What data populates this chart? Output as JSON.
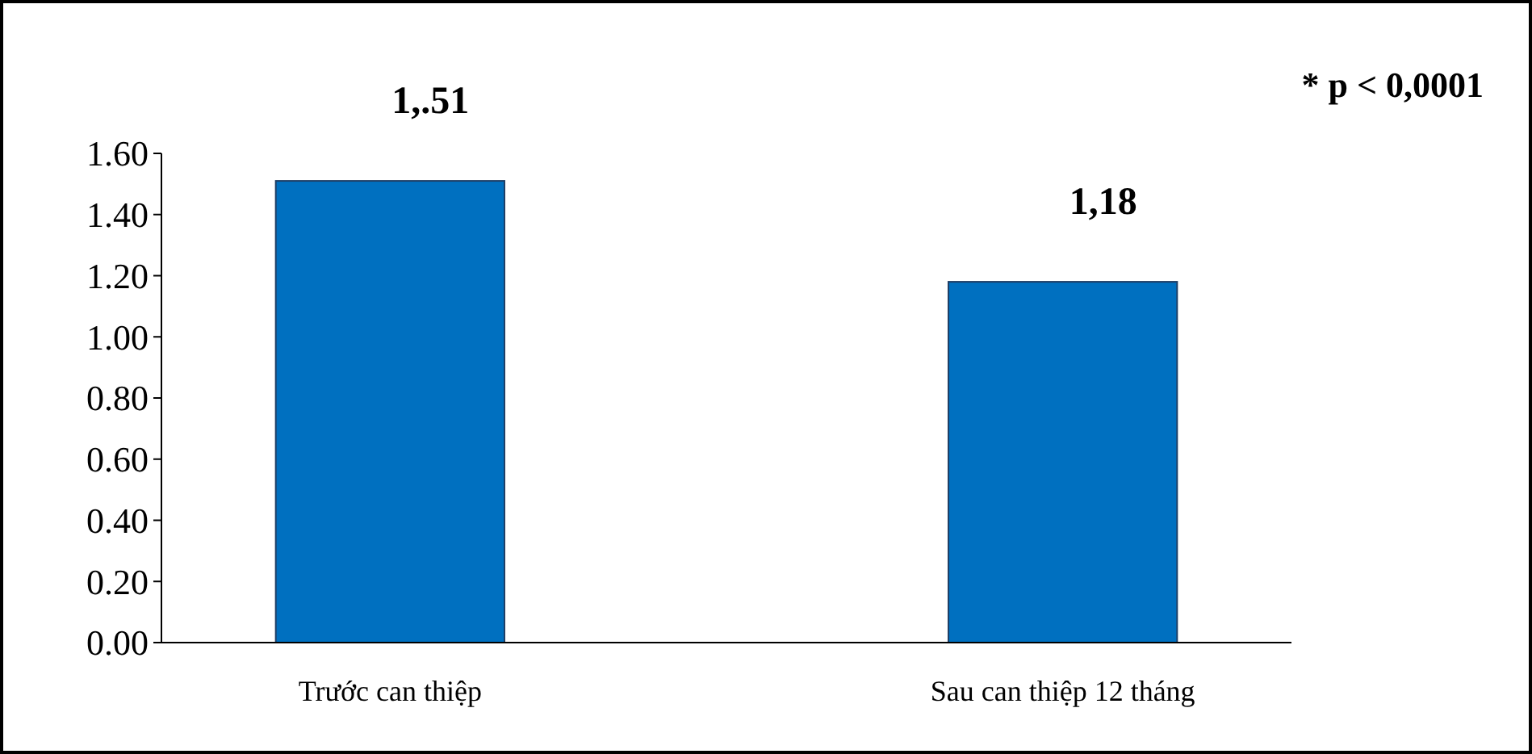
{
  "chart_data": {
    "type": "bar",
    "categories": [
      "Trước can thiệp",
      "Sau can thiệp 12 tháng"
    ],
    "values": [
      1.51,
      1.18
    ],
    "value_labels": [
      "1,.51",
      "1,18"
    ],
    "color": "#0070c0",
    "ylim": [
      0,
      1.6
    ],
    "yticks": [
      {
        "value": 0,
        "label": "0.00"
      },
      {
        "value": 0.2,
        "label": "0.20"
      },
      {
        "value": 0.4,
        "label": "0.40"
      },
      {
        "value": 0.6,
        "label": "0.60"
      },
      {
        "value": 0.8,
        "label": "0.80"
      },
      {
        "value": 1,
        "label": "1.00"
      },
      {
        "value": 1.2,
        "label": "1.20"
      },
      {
        "value": 1.4,
        "label": "1.40"
      },
      {
        "value": 1.6,
        "label": "1.60"
      }
    ],
    "annotations": [
      "* p < 0,0001"
    ],
    "grid": false
  }
}
